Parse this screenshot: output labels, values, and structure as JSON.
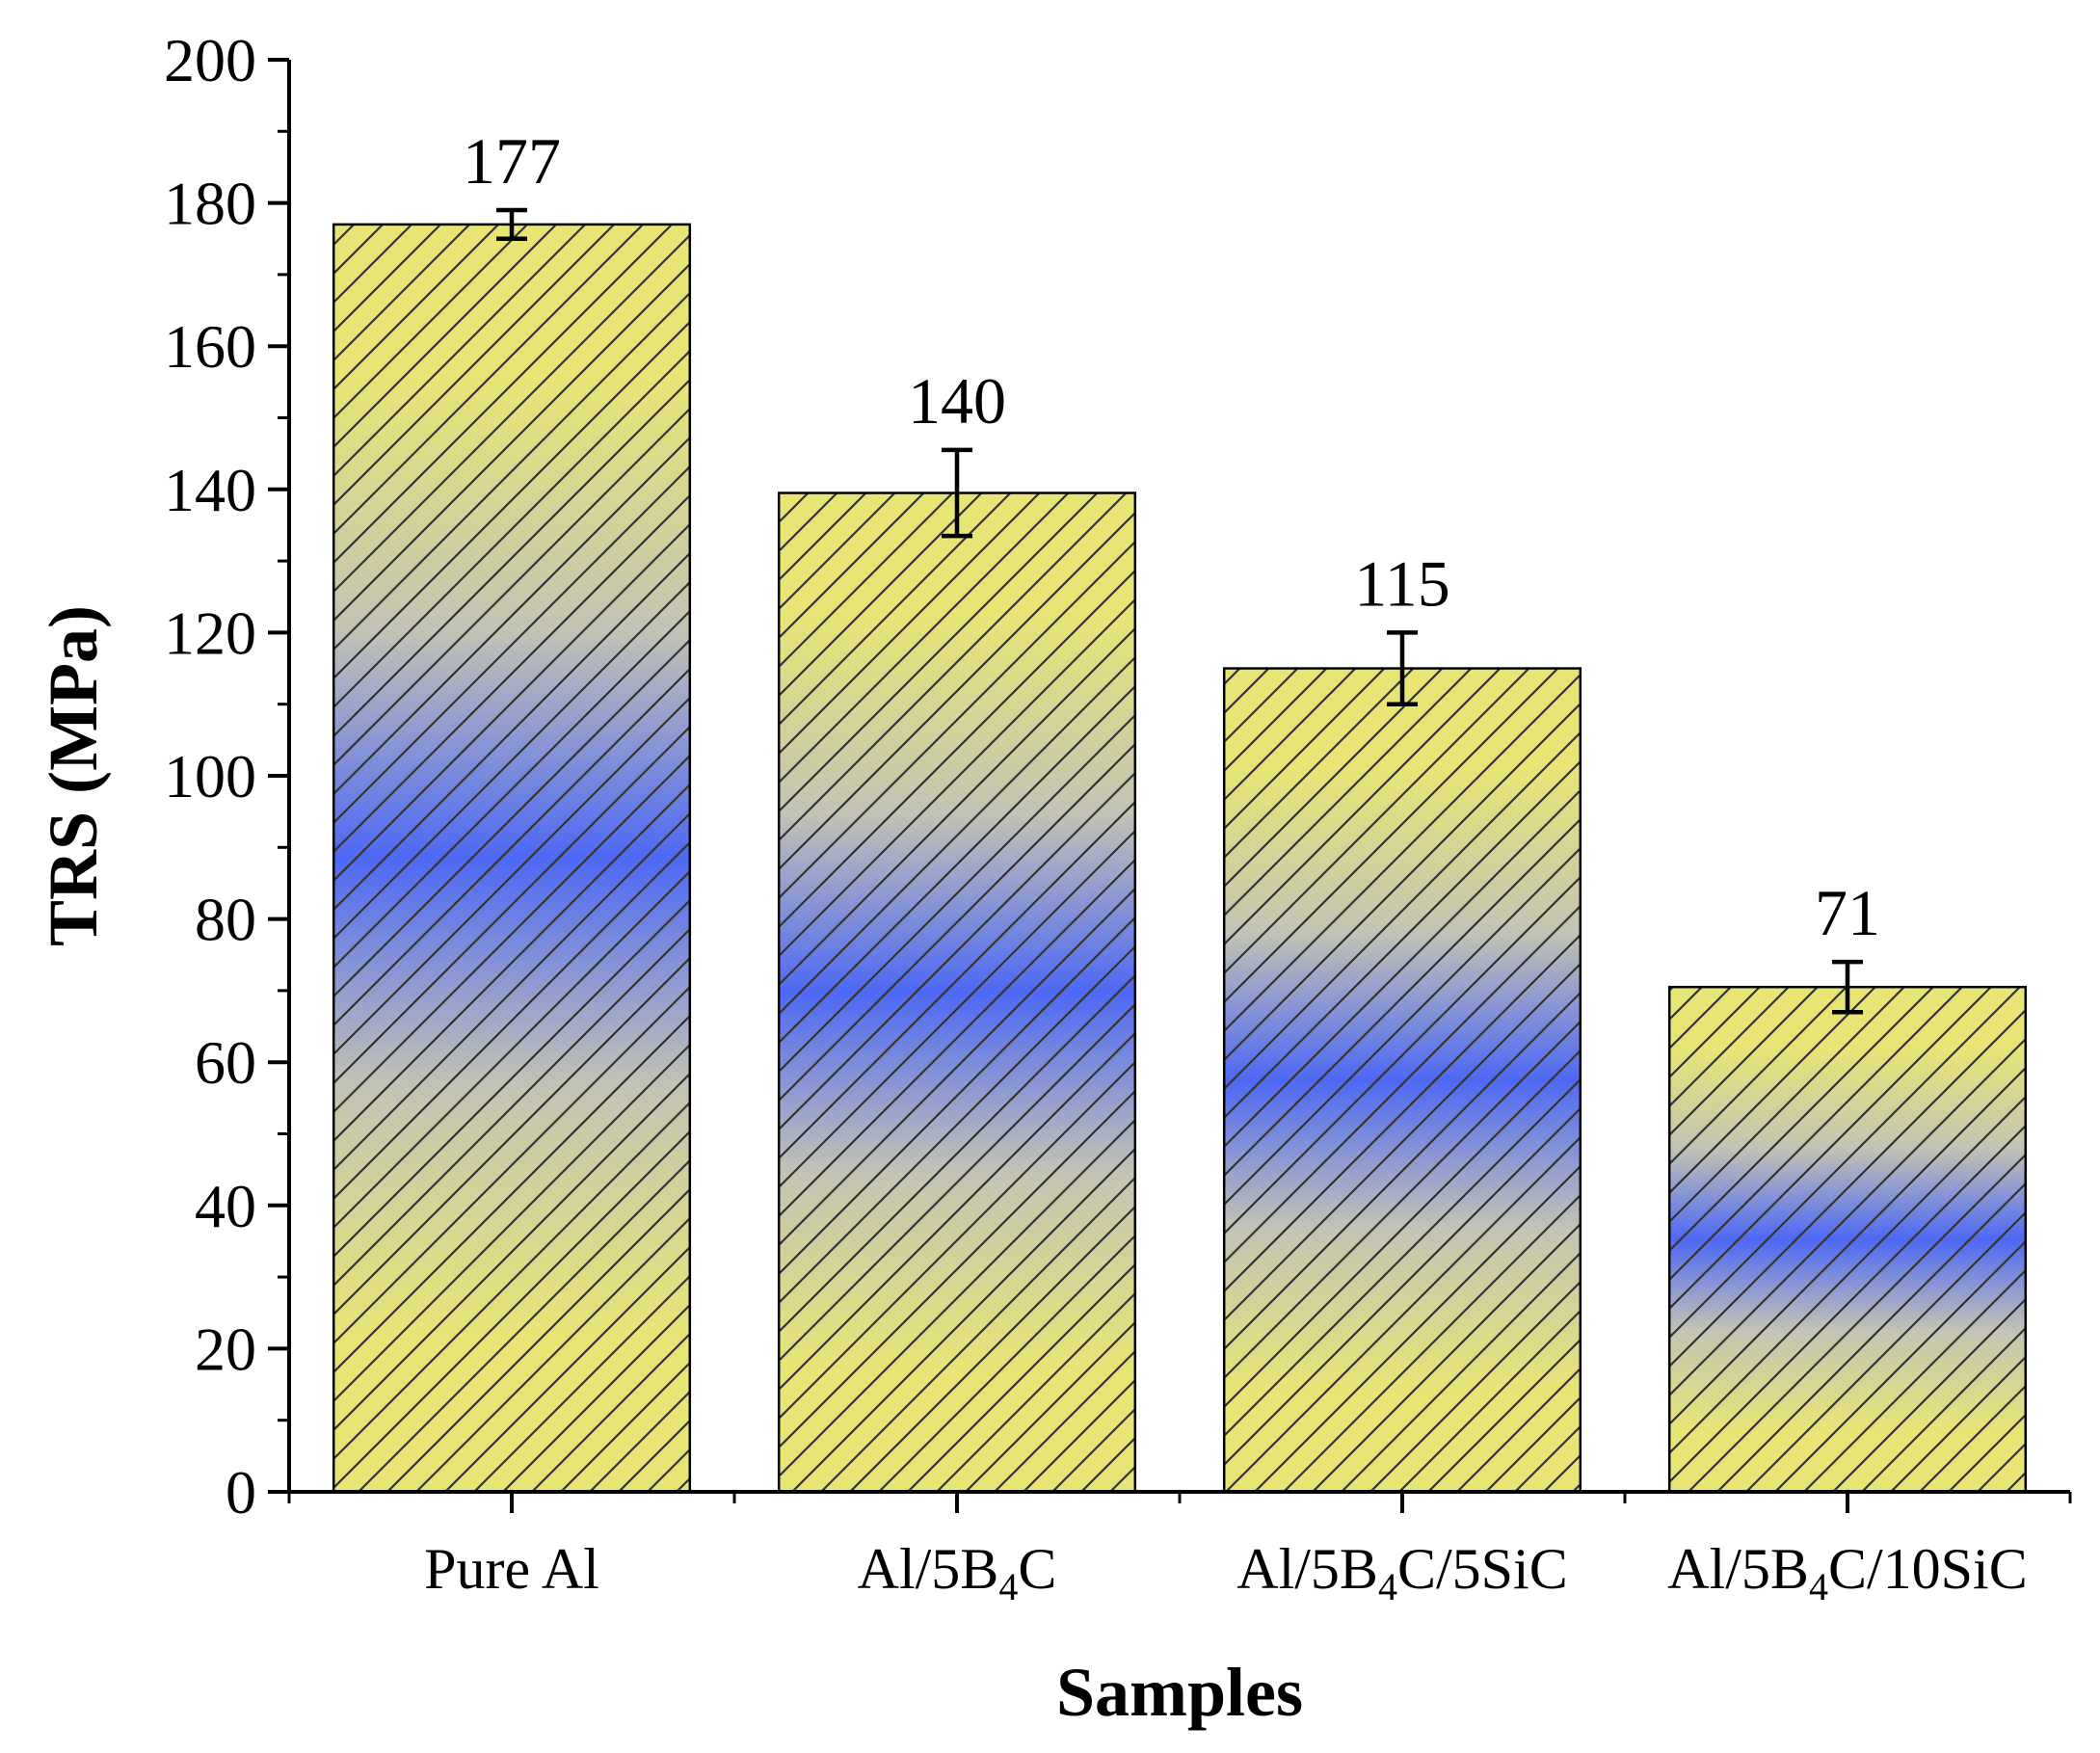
{
  "chart_data": {
    "type": "bar",
    "title": "",
    "xlabel": "Samples",
    "ylabel": "TRS (MPa)",
    "ylim": [
      0,
      200
    ],
    "yticks": [
      "0",
      "20",
      "40",
      "60",
      "80",
      "100",
      "120",
      "140",
      "160",
      "180",
      "200"
    ],
    "categories": [
      {
        "base": "Pure Al",
        "sub": "",
        "rest": ""
      },
      {
        "base": "Al/5B",
        "sub": "4",
        "rest": "C"
      },
      {
        "base": "Al/5B",
        "sub": "4",
        "rest": "C/5SiC"
      },
      {
        "base": "Al/5B",
        "sub": "4",
        "rest": "C/10SiC"
      }
    ],
    "values": [
      177,
      139.5,
      115,
      70.5
    ],
    "errors": [
      2,
      6,
      5,
      3.5
    ],
    "data_labels": [
      "177",
      "140",
      "115",
      "71"
    ],
    "grid": false,
    "fill": {
      "pattern": "diagonal-hatch",
      "gradient_colors": [
        "#e8e574",
        "#4e68f5"
      ]
    }
  }
}
